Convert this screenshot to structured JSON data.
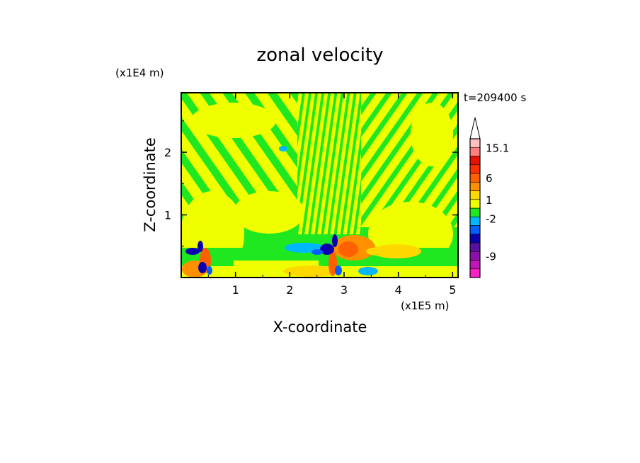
{
  "chart_data": {
    "type": "heatmap",
    "title": "zonal velocity",
    "xlabel": "X-coordinate",
    "ylabel": "Z-coordinate",
    "x_unit": "(x1E5 m)",
    "y_unit": "(x1E4 m)",
    "time_label": "t=209400 s",
    "xlim": [
      0,
      5.1
    ],
    "ylim": [
      0,
      2.95
    ],
    "xticks": [
      1,
      2,
      3,
      4,
      5
    ],
    "yticks": [
      1,
      2
    ],
    "colorbar": {
      "levels": [
        {
          "color": "#ff20c8"
        },
        {
          "color": "#c018b8"
        },
        {
          "color": "#8a10a8"
        },
        {
          "color": "#5a10a0"
        },
        {
          "color": "#0a00b0"
        },
        {
          "color": "#0060ff"
        },
        {
          "color": "#00b8ff"
        },
        {
          "color": "#20e820"
        },
        {
          "color": "#f0ff00"
        },
        {
          "color": "#ffd800"
        },
        {
          "color": "#ff9000"
        },
        {
          "color": "#ff6000"
        },
        {
          "color": "#ff3000"
        },
        {
          "color": "#e81000"
        },
        {
          "color": "#ff8080"
        },
        {
          "color": "#ffc0c0"
        }
      ],
      "labels": [
        {
          "text": "15.1",
          "level": 15.0
        },
        {
          "text": "6",
          "level": 11.5
        },
        {
          "text": "1",
          "level": 9.0
        },
        {
          "text": "-2",
          "level": 6.8
        },
        {
          "text": "-9",
          "level": 2.5
        }
      ]
    },
    "field_features": [
      {
        "name": "left jet core",
        "x": 0.35,
        "z": 0.3,
        "value": -9
      },
      {
        "name": "center jet core",
        "x": 2.85,
        "z": 0.35,
        "value": -9
      },
      {
        "name": "center warm lobe",
        "x": 3.1,
        "z": 0.35,
        "value": 6
      }
    ]
  }
}
